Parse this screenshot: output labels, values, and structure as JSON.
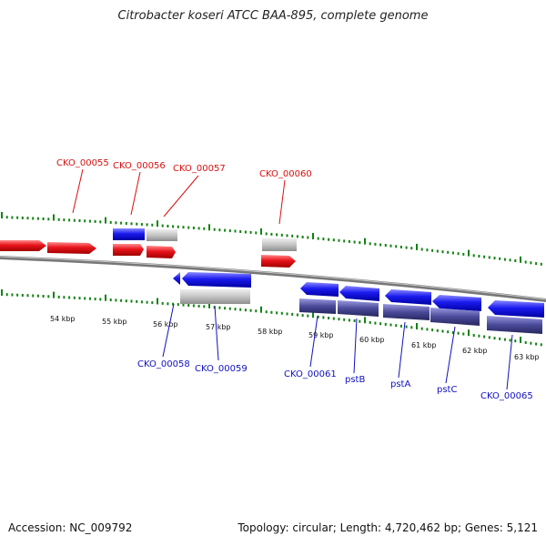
{
  "title": "Citrobacter koseri ATCC BAA-895, complete genome",
  "footer": {
    "accession": "Accession: NC_009792",
    "summary": "Topology: circular; Length: 4,720,462 bp; Genes: 5,121"
  },
  "colors": {
    "forward_cds": "#e8141b",
    "forward_cds_highlight": "#1414d0",
    "reverse_cds": "#1a1aee",
    "gene_grey": "#bdbdbd",
    "operon_purple": "#4a4a9a",
    "tick_green": "#128212",
    "label_red": "#d81010",
    "label_blue": "#1010c0",
    "backbone": "#8a8a8a"
  },
  "kbp_labels": [
    "54 kbp",
    "55 kbp",
    "56 kbp",
    "57 kbp",
    "58 kbp",
    "59 kbp",
    "60 kbp",
    "61 kbp",
    "62 kbp",
    "63 kbp"
  ],
  "top_labels": [
    "CKO_00055",
    "CKO_00056",
    "CKO_00057",
    "CKO_00060"
  ],
  "bottom_labels": [
    "CKO_00058",
    "CKO_00059",
    "CKO_00061",
    "pstB",
    "pstA",
    "pstC",
    "CKO_00065"
  ]
}
